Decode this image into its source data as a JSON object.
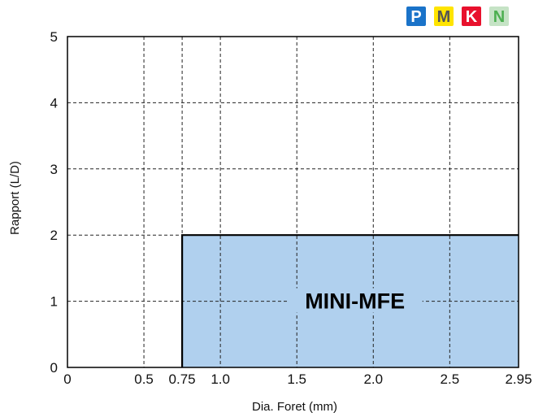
{
  "chart_data": {
    "type": "area",
    "title": "",
    "xlabel": "Dia. Foret (mm)",
    "ylabel": "Rapport (L/D)",
    "xlim": [
      0,
      2.95
    ],
    "ylim": [
      0,
      5
    ],
    "x_ticks": [
      {
        "value": 0,
        "label": "0"
      },
      {
        "value": 0.5,
        "label": "0.5"
      },
      {
        "value": 0.75,
        "label": "0.75"
      },
      {
        "value": 1.0,
        "label": "1.0"
      },
      {
        "value": 1.5,
        "label": "1.5"
      },
      {
        "value": 2.0,
        "label": "2.0"
      },
      {
        "value": 2.5,
        "label": "2.5"
      },
      {
        "value": 2.95,
        "label": "2.95"
      }
    ],
    "y_ticks": [
      {
        "value": 0,
        "label": "0"
      },
      {
        "value": 1,
        "label": "1"
      },
      {
        "value": 2,
        "label": "2"
      },
      {
        "value": 3,
        "label": "3"
      },
      {
        "value": 4,
        "label": "4"
      },
      {
        "value": 5,
        "label": "5"
      }
    ],
    "grid": true,
    "grid_style": "dashed",
    "regions": [
      {
        "label": "MINI-MFE",
        "x_range": [
          0.75,
          2.95
        ],
        "y_range": [
          0,
          2
        ],
        "fill": "#b0d0ee"
      }
    ]
  },
  "material_badges": [
    {
      "letter": "P",
      "bg": "#1a73c9",
      "fg": "#ffffff"
    },
    {
      "letter": "M",
      "bg": "#ffe400",
      "fg": "#555555"
    },
    {
      "letter": "K",
      "bg": "#e8112d",
      "fg": "#ffffff"
    },
    {
      "letter": "N",
      "bg": "#c5e3c5",
      "fg": "#4caf50"
    }
  ]
}
